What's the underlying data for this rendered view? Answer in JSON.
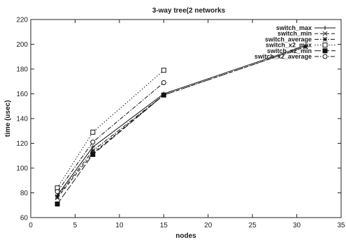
{
  "chart_data": {
    "type": "line",
    "title": "3-way tree(2 networks",
    "xlabel": "nodes",
    "ylabel": "time (usec)",
    "xlim": [
      0,
      35
    ],
    "ylim": [
      60,
      220
    ],
    "xticks": [
      "0",
      "5",
      "10",
      "15",
      "20",
      "25",
      "30",
      "35"
    ],
    "yticks": [
      "60",
      "80",
      "100",
      "120",
      "140",
      "160",
      "180",
      "200",
      "220"
    ],
    "grid": false,
    "legend_position": "top-right",
    "series": [
      {
        "name": "switch_max",
        "marker": "plus",
        "dash": "solid",
        "x": [
          3,
          7,
          15,
          31
        ],
        "y": [
          78,
          117,
          160,
          199
        ]
      },
      {
        "name": "switch_min",
        "marker": "cross",
        "dash": "dash",
        "x": [
          3,
          7,
          15,
          31
        ],
        "y": [
          76,
          112,
          159,
          198
        ]
      },
      {
        "name": "switch_average",
        "marker": "star",
        "dash": "dashdot",
        "x": [
          3,
          7,
          15,
          31
        ],
        "y": [
          77,
          114,
          159,
          198
        ]
      },
      {
        "name": "switch_x2_max",
        "marker": "square",
        "dash": "dot",
        "x": [
          3,
          7,
          15
        ],
        "y": [
          84,
          129,
          179
        ]
      },
      {
        "name": "switch_x2_min",
        "marker": "filled-square",
        "dash": "longdash",
        "x": [
          3,
          7,
          15
        ],
        "y": [
          71,
          111,
          159
        ]
      },
      {
        "name": "switch_x2_average",
        "marker": "circle",
        "dash": "dashdot",
        "x": [
          3,
          7,
          15
        ],
        "y": [
          81,
          121,
          169
        ]
      }
    ]
  }
}
